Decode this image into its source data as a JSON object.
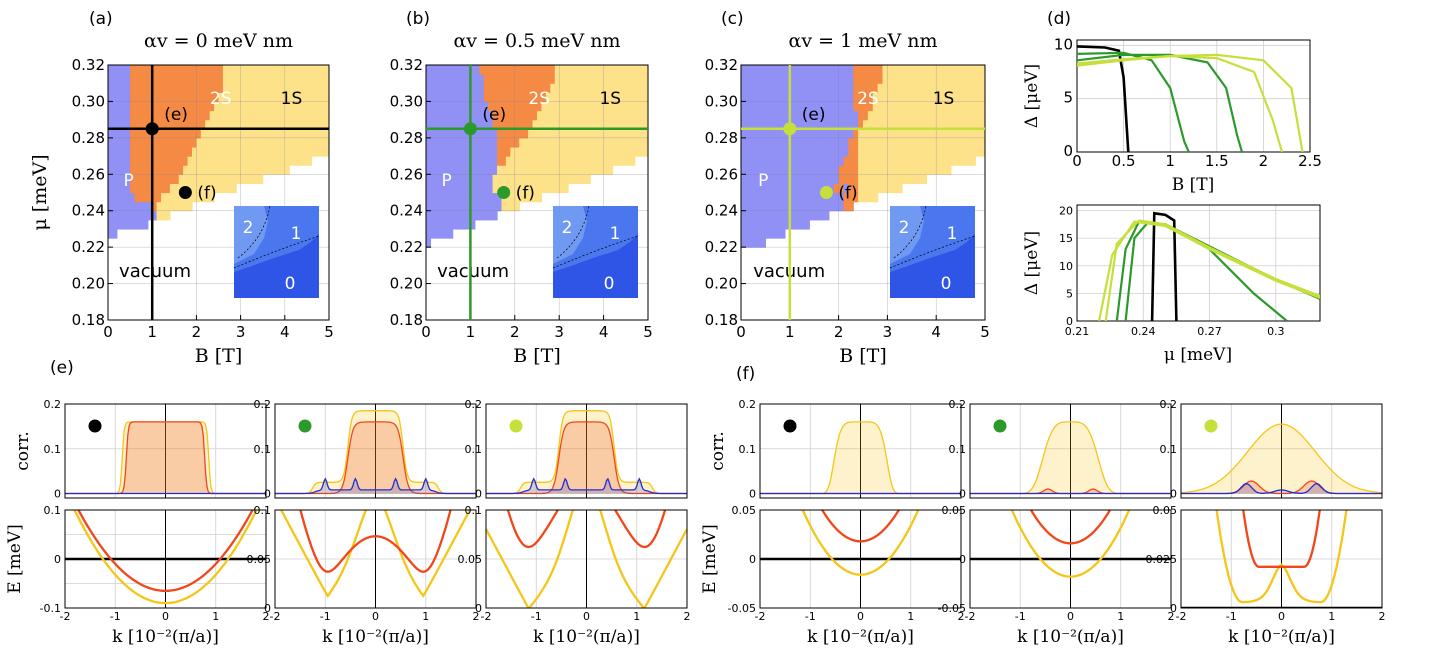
{
  "figure_labels": {
    "phase": [
      "(a)",
      "(b)",
      "(c)"
    ],
    "d": "(d)",
    "e": "(e)",
    "f": "(f)"
  },
  "colors": {
    "black": "#000000",
    "green": "#2b9a2b",
    "lime": "#c6df3a",
    "red": "#f2461b",
    "yellow": "#f5c518",
    "blue": "#1f2fd8",
    "P": "#9090f5",
    "S2": "#f58a45",
    "S1": "#fde28a",
    "inset0": "#2e55e6",
    "inset1": "#4a76ee",
    "inset2": "#7099f2"
  },
  "chart_data": [
    {
      "type": "heatmap",
      "panel": "(a)",
      "title": "αv = 0 meV nm",
      "xlabel": "B [T]",
      "ylabel": "μ [meV]",
      "xlim": [
        0,
        5
      ],
      "ylim": [
        0.18,
        0.32
      ],
      "xticks": [
        "0",
        "1",
        "2",
        "3",
        "4",
        "5"
      ],
      "yticks": [
        "0.18",
        "0.20",
        "0.22",
        "0.24",
        "0.26",
        "0.28",
        "0.30",
        "0.32"
      ],
      "regions": [
        "P",
        "2S",
        "1S",
        "vacuum"
      ],
      "marker_color": "black",
      "cut": {
        "B": 1.0,
        "mu": 0.285
      },
      "points": [
        {
          "label": "(e)",
          "B": 1.0,
          "mu": 0.285
        },
        {
          "label": "(f)",
          "B": 1.75,
          "mu": 0.25
        }
      ],
      "boundaries": {
        "vac": [
          [
            0,
            0.226
          ],
          [
            1,
            0.233
          ],
          [
            2,
            0.244
          ],
          [
            3,
            0.253
          ],
          [
            4,
            0.262
          ],
          [
            5,
            0.272
          ]
        ],
        "pS": [
          [
            0.45,
            0.32
          ],
          [
            0.55,
            0.302
          ],
          [
            0.5,
            0.28
          ],
          [
            0.45,
            0.262
          ],
          [
            0.6,
            0.245
          ],
          [
            0.9,
            0.232
          ]
        ],
        "s21": [
          [
            2.65,
            0.32
          ],
          [
            2.6,
            0.31
          ],
          [
            2.4,
            0.295
          ],
          [
            2.0,
            0.275
          ],
          [
            1.7,
            0.262
          ],
          [
            1.4,
            0.252
          ],
          [
            1.1,
            0.245
          ]
        ]
      },
      "inset_labels": [
        "2",
        "1",
        "0"
      ]
    },
    {
      "type": "heatmap",
      "panel": "(b)",
      "title": "αv = 0.5 meV nm",
      "xlabel": "B [T]",
      "ylabel": "",
      "xlim": [
        0,
        5
      ],
      "ylim": [
        0.18,
        0.32
      ],
      "xticks": [
        "0",
        "1",
        "2",
        "3",
        "4",
        "5"
      ],
      "yticks": [
        "0.18",
        "0.20",
        "0.22",
        "0.24",
        "0.26",
        "0.28",
        "0.30",
        "0.32"
      ],
      "regions": [
        "P",
        "2S",
        "1S",
        "vacuum"
      ],
      "marker_color": "green",
      "cut": {
        "B": 1.0,
        "mu": 0.285
      },
      "points": [
        {
          "label": "(e)",
          "B": 1.0,
          "mu": 0.285
        },
        {
          "label": "(f)",
          "B": 1.75,
          "mu": 0.25
        }
      ],
      "boundaries": {
        "vac": [
          [
            0,
            0.222
          ],
          [
            1,
            0.231
          ],
          [
            2,
            0.242
          ],
          [
            3,
            0.251
          ],
          [
            4,
            0.261
          ],
          [
            5,
            0.271
          ]
        ],
        "pS": [
          [
            1.2,
            0.32
          ],
          [
            1.35,
            0.302
          ],
          [
            1.6,
            0.28
          ],
          [
            1.55,
            0.262
          ],
          [
            1.4,
            0.246
          ],
          [
            1.25,
            0.235
          ]
        ],
        "s21": [
          [
            2.95,
            0.32
          ],
          [
            2.85,
            0.31
          ],
          [
            2.6,
            0.295
          ],
          [
            2.2,
            0.28
          ],
          [
            1.8,
            0.268
          ],
          [
            1.5,
            0.262
          ]
        ]
      },
      "inset_labels": [
        "2",
        "1",
        "0"
      ]
    },
    {
      "type": "heatmap",
      "panel": "(c)",
      "title": "αv = 1 meV nm",
      "xlabel": "B [T]",
      "ylabel": "",
      "xlim": [
        0,
        5
      ],
      "ylim": [
        0.18,
        0.32
      ],
      "xticks": [
        "0",
        "1",
        "2",
        "3",
        "4",
        "5"
      ],
      "yticks": [
        "0.18",
        "0.20",
        "0.22",
        "0.24",
        "0.26",
        "0.28",
        "0.30",
        "0.32"
      ],
      "regions": [
        "P",
        "2S",
        "1S",
        "vacuum"
      ],
      "marker_color": "lime",
      "cut": {
        "B": 1.0,
        "mu": 0.285
      },
      "points": [
        {
          "label": "(e)",
          "B": 1.0,
          "mu": 0.285
        },
        {
          "label": "(f)",
          "B": 1.75,
          "mu": 0.25
        }
      ],
      "boundaries": {
        "vac": [
          [
            0,
            0.218
          ],
          [
            1,
            0.228
          ],
          [
            2,
            0.24
          ],
          [
            3,
            0.25
          ],
          [
            4,
            0.26
          ],
          [
            5,
            0.27
          ]
        ],
        "pS": [
          [
            2.25,
            0.32
          ],
          [
            2.3,
            0.3
          ],
          [
            2.4,
            0.29
          ],
          [
            2.15,
            0.27
          ],
          [
            1.95,
            0.255
          ],
          [
            1.8,
            0.245
          ]
        ],
        "s21": [
          [
            2.95,
            0.32
          ],
          [
            2.85,
            0.31
          ],
          [
            2.7,
            0.3
          ],
          [
            2.55,
            0.29
          ],
          [
            2.4,
            0.28
          ]
        ]
      },
      "inset_labels": [
        "2",
        "1",
        "0"
      ]
    },
    {
      "type": "line",
      "panel": "(d) top",
      "xlabel": "B [T]",
      "ylabel": "Δ [μeV]",
      "xlim": [
        0,
        2.5
      ],
      "ylim": [
        0,
        10.5
      ],
      "xticks": [
        "0",
        "0.5",
        "1",
        "1.5",
        "2",
        "2.5"
      ],
      "yticks": [
        "0",
        "5",
        "10"
      ],
      "series": [
        {
          "color": "black",
          "points": [
            [
              0,
              9.9
            ],
            [
              0.3,
              9.8
            ],
            [
              0.45,
              9.5
            ],
            [
              0.5,
              7
            ],
            [
              0.55,
              0
            ]
          ]
        },
        {
          "color": "green",
          "points": [
            [
              0,
              9.2
            ],
            [
              0.5,
              9.3
            ],
            [
              0.8,
              8.6
            ],
            [
              1.0,
              6
            ],
            [
              1.15,
              1
            ],
            [
              1.2,
              0
            ]
          ]
        },
        {
          "color": "green",
          "points": [
            [
              0,
              8.6
            ],
            [
              0.5,
              9.1
            ],
            [
              1.0,
              9.1
            ],
            [
              1.4,
              8.4
            ],
            [
              1.6,
              6
            ],
            [
              1.72,
              1.5
            ],
            [
              1.77,
              0
            ]
          ]
        },
        {
          "color": "lime",
          "points": [
            [
              0,
              8.1
            ],
            [
              0.5,
              8.6
            ],
            [
              1.0,
              9.0
            ],
            [
              1.5,
              8.8
            ],
            [
              1.9,
              7.5
            ],
            [
              2.1,
              3
            ],
            [
              2.2,
              0
            ]
          ]
        },
        {
          "color": "lime",
          "points": [
            [
              0,
              8.3
            ],
            [
              0.5,
              8.7
            ],
            [
              1.0,
              9.0
            ],
            [
              1.5,
              9.1
            ],
            [
              2.0,
              8.6
            ],
            [
              2.3,
              6
            ],
            [
              2.42,
              0
            ]
          ]
        }
      ]
    },
    {
      "type": "line",
      "panel": "(d) bottom",
      "xlabel": "μ [meV]",
      "ylabel": "Δ [μeV]",
      "xlim": [
        0.21,
        0.32
      ],
      "ylim": [
        0,
        21
      ],
      "xticks": [
        "0.21",
        "0.24",
        "0.27",
        "0.3"
      ],
      "yticks": [
        "0",
        "5",
        "10",
        "15",
        "20"
      ],
      "series": [
        {
          "color": "black",
          "points": [
            [
              0.244,
              0
            ],
            [
              0.245,
              19.5
            ],
            [
              0.25,
              19.2
            ],
            [
              0.254,
              18.2
            ],
            [
              0.255,
              0
            ]
          ]
        },
        {
          "color": "green",
          "points": [
            [
              0.232,
              0
            ],
            [
              0.236,
              15
            ],
            [
              0.242,
              17.8
            ],
            [
              0.25,
              17.5
            ],
            [
              0.27,
              13
            ],
            [
              0.29,
              5
            ],
            [
              0.305,
              0
            ]
          ]
        },
        {
          "color": "green",
          "points": [
            [
              0.228,
              0
            ],
            [
              0.232,
              13
            ],
            [
              0.238,
              18
            ],
            [
              0.25,
              17.5
            ],
            [
              0.27,
              13.5
            ],
            [
              0.3,
              7.5
            ],
            [
              0.32,
              4
            ]
          ]
        },
        {
          "color": "lime",
          "points": [
            [
              0.22,
              0
            ],
            [
              0.226,
              12
            ],
            [
              0.236,
              18
            ],
            [
              0.25,
              17.2
            ],
            [
              0.27,
              13
            ],
            [
              0.3,
              7.3
            ],
            [
              0.32,
              4.2
            ]
          ]
        },
        {
          "color": "lime",
          "points": [
            [
              0.223,
              0
            ],
            [
              0.228,
              14
            ],
            [
              0.238,
              18.2
            ],
            [
              0.25,
              17.5
            ],
            [
              0.27,
              13.3
            ],
            [
              0.3,
              7.6
            ],
            [
              0.32,
              4.5
            ]
          ]
        }
      ]
    },
    {
      "type": "line",
      "panel": "(e)",
      "cols": [
        {
          "color": "black",
          "corr": {
            "ylim": [
              -0.01,
              0.2
            ],
            "yticks": [
              "0",
              "0.1",
              "0.2"
            ],
            "yellow_plateau": 0.16,
            "width_yellow": 0.86,
            "width_red": 0.78,
            "blue": 0
          },
          "E": {
            "ylim": [
              -0.1,
              0.1
            ],
            "yticks": [
              "-0.1",
              "-0.05",
              "0",
              "0.05",
              "0.1"
            ],
            "ylabels_shown": [
              "-0.1",
              "0",
              "0.1"
            ],
            "red_min": -0.065,
            "yellow_min": -0.09,
            "gap_line": 0
          }
        },
        {
          "color": "green",
          "corr": {
            "ylim": [
              -0.01,
              0.2
            ],
            "yticks": [
              "0",
              "0.1",
              "0.2"
            ],
            "yellow_plateau": 0.16
          },
          "E": {
            "ylim": [
              0,
              0.1
            ],
            "yticks": [
              "0",
              "0.05",
              "0.1"
            ],
            "red_center": 0.092,
            "red_kF": 0.95,
            "red_min": 0.037,
            "yellow_center": 0.069,
            "yellow_min": 0.015
          }
        },
        {
          "color": "lime",
          "corr": {
            "ylim": [
              -0.01,
              0.2
            ],
            "yticks": [
              "0",
              "0.1",
              "0.2"
            ],
            "yellow_plateau": 0.16
          },
          "E": {
            "ylim": [
              0,
              0.1
            ],
            "yticks": [
              "0",
              "0.05",
              "0.1"
            ],
            "red_center": 0.095,
            "red_min": 0.062,
            "yellow_center": 0.073,
            "yellow_min": 0.003
          }
        }
      ],
      "xlabel": "k [10⁻²(π/a)]",
      "xlim": [
        -2,
        2
      ],
      "xticks": [
        "-2",
        "-1",
        "0",
        "1",
        "2"
      ],
      "ylabel_corr": "corr.",
      "ylabel_E": "E [meV]"
    },
    {
      "type": "line",
      "panel": "(f)",
      "cols": [
        {
          "color": "black",
          "corr": {
            "ylim": [
              -0.01,
              0.2
            ],
            "yticks": [
              "0",
              "0.1",
              "0.2"
            ],
            "yellow_peak": 0.16
          },
          "E": {
            "ylim": [
              -0.05,
              0.05
            ],
            "yticks": [
              "-0.05",
              "0",
              "0.05"
            ],
            "red_min": 0.018,
            "yellow_min": -0.016
          }
        },
        {
          "color": "green",
          "corr": {
            "ylim": [
              -0.01,
              0.2
            ],
            "yticks": [
              "0",
              "0.1",
              "0.2"
            ],
            "yellow_peak": 0.16
          },
          "E": {
            "ylim": [
              -0.05,
              0.05
            ],
            "yticks": [
              "-0.05",
              "0",
              "0.05"
            ],
            "red_min": 0.016,
            "yellow_min": -0.018
          }
        },
        {
          "color": "lime",
          "corr": {
            "ylim": [
              -0.01,
              0.2
            ],
            "yticks": [
              "0",
              "0.1",
              "0.2"
            ],
            "yellow_peak": 0.155
          },
          "E": {
            "ylim": [
              0,
              0.05
            ],
            "yticks": [
              "0",
              "0.025",
              "0.05"
            ],
            "red_min": 0.021,
            "yellow_center": 0.014,
            "yellow_min": 0.003
          }
        }
      ],
      "xlabel": "k [10⁻²(π/a)]",
      "xlim": [
        -2,
        2
      ],
      "xticks": [
        "-2",
        "-1",
        "0",
        "1",
        "2"
      ],
      "ylabel_corr": "corr.",
      "ylabel_E": "E [meV]"
    }
  ]
}
